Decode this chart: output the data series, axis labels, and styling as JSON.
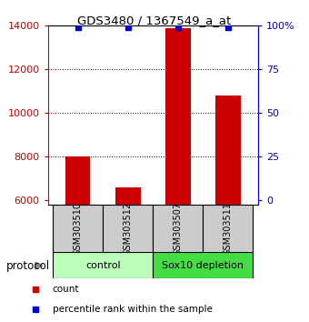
{
  "title": "GDS3480 / 1367549_a_at",
  "samples": [
    "GSM303510",
    "GSM303512",
    "GSM303507",
    "GSM303511"
  ],
  "counts": [
    8000,
    6600,
    13900,
    10800
  ],
  "percentile_ranks": [
    99,
    99,
    99,
    99
  ],
  "ymin": 5800,
  "ymax": 14000,
  "yticks": [
    6000,
    8000,
    10000,
    12000,
    14000
  ],
  "right_yticks": [
    0,
    25,
    50,
    75,
    100
  ],
  "groups": [
    {
      "label": "control",
      "indices": [
        0,
        1
      ],
      "color": "#bbffbb"
    },
    {
      "label": "Sox10 depletion",
      "indices": [
        2,
        3
      ],
      "color": "#44dd44"
    }
  ],
  "bar_color": "#cc0000",
  "dot_color": "#0000cc",
  "left_tick_color": "#cc0000",
  "right_tick_color": "#0000cc",
  "title_color": "#000000",
  "sample_box_color": "#cccccc",
  "sample_box_edge": "#000000",
  "protocol_label": "protocol",
  "legend_items": [
    {
      "color": "#cc0000",
      "label": "count"
    },
    {
      "color": "#0000cc",
      "label": "percentile rank within the sample"
    }
  ],
  "figsize": [
    3.4,
    3.54
  ],
  "dpi": 100
}
